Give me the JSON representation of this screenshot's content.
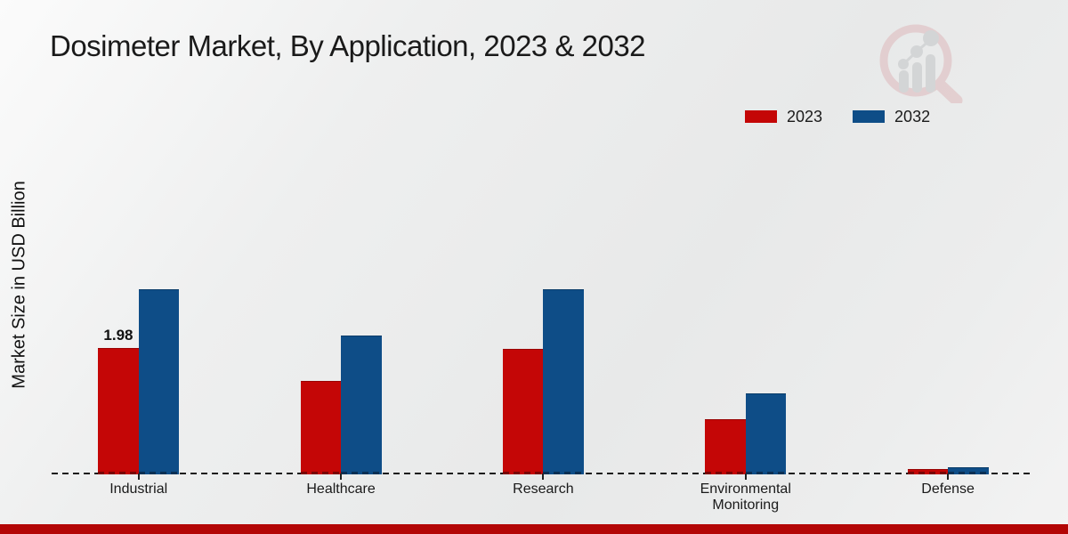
{
  "page": {
    "footer_color": "#b30606",
    "background_color": "#ececec",
    "watermark": "market-research-future-logo"
  },
  "legend": {
    "position": "top-right",
    "items": [
      {
        "label": "2023",
        "color": "#c40606"
      },
      {
        "label": "2032",
        "color": "#0e4d87"
      }
    ]
  },
  "chart_data": {
    "type": "bar",
    "title": "Dosimeter Market, By Application, 2023 & 2032",
    "xlabel": "",
    "ylabel": "Market Size in USD Billion",
    "categories": [
      "Industrial",
      "Healthcare",
      "Research",
      "Environmental Monitoring",
      "Defense"
    ],
    "series": [
      {
        "name": "2023",
        "color": "#c40606",
        "values": [
          1.98,
          1.47,
          1.96,
          0.87,
          0.08
        ]
      },
      {
        "name": "2032",
        "color": "#0e4d87",
        "values": [
          2.9,
          2.18,
          2.9,
          1.27,
          0.11
        ]
      }
    ],
    "data_labels": [
      {
        "category": "Industrial",
        "series": "2023",
        "text": "1.98"
      }
    ],
    "ylim": [
      0,
      3.2
    ],
    "grid": false,
    "y_axis_ticks_visible": false,
    "baseline_style": "dashed",
    "legend_position": "top-right"
  }
}
